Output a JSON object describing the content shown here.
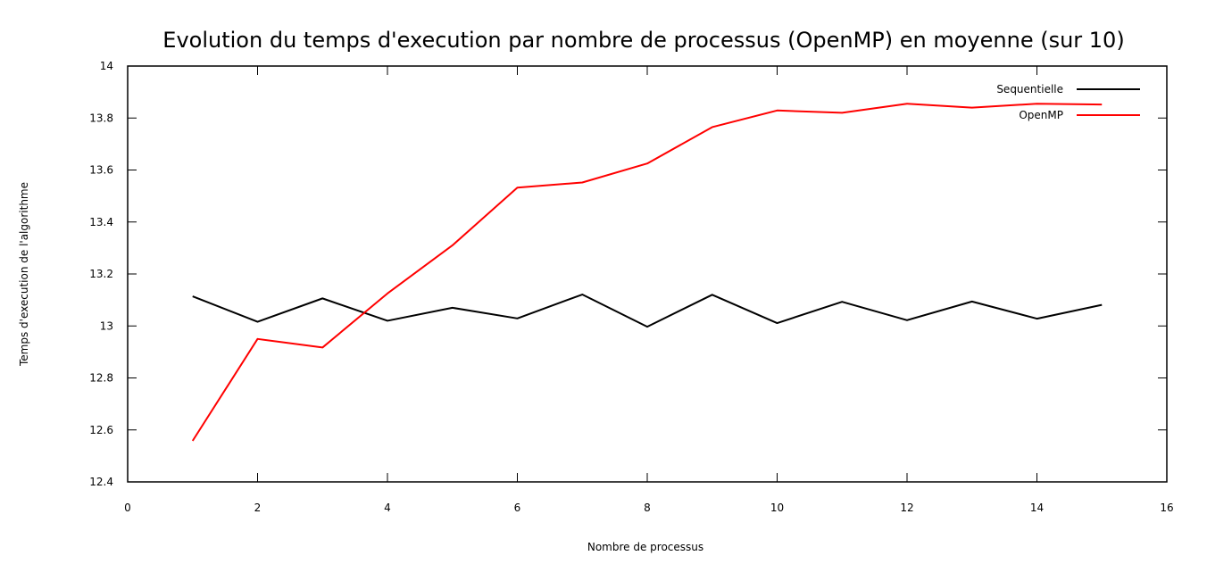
{
  "chart_data": {
    "type": "line",
    "title": "Evolution du temps d'execution par nombre de processus (OpenMP) en moyenne (sur 10)",
    "xlabel": "Nombre de processus",
    "ylabel": "Temps d'execution de l'algorithme",
    "xlim": [
      0,
      16
    ],
    "ylim": [
      12.4,
      14
    ],
    "xticks": [
      0,
      2,
      4,
      6,
      8,
      10,
      12,
      14,
      16
    ],
    "yticks": [
      12.4,
      12.6,
      12.8,
      13,
      13.2,
      13.4,
      13.6,
      13.8,
      14
    ],
    "grid": false,
    "legend_position": "top-right",
    "x": [
      1,
      2,
      3,
      4,
      5,
      6,
      7,
      8,
      9,
      10,
      11,
      12,
      13,
      14,
      15
    ],
    "series": [
      {
        "name": "Sequentielle",
        "color": "#000000",
        "values": [
          13.114,
          13.016,
          13.106,
          13.02,
          13.07,
          13.029,
          13.121,
          12.997,
          13.12,
          13.011,
          13.093,
          13.022,
          13.094,
          13.028,
          13.081
        ]
      },
      {
        "name": "OpenMP",
        "color": "#ff0000",
        "values": [
          12.558,
          12.95,
          12.917,
          13.125,
          13.31,
          13.532,
          13.552,
          13.625,
          13.765,
          13.829,
          13.82,
          13.855,
          13.84,
          13.855,
          13.852
        ]
      }
    ]
  }
}
